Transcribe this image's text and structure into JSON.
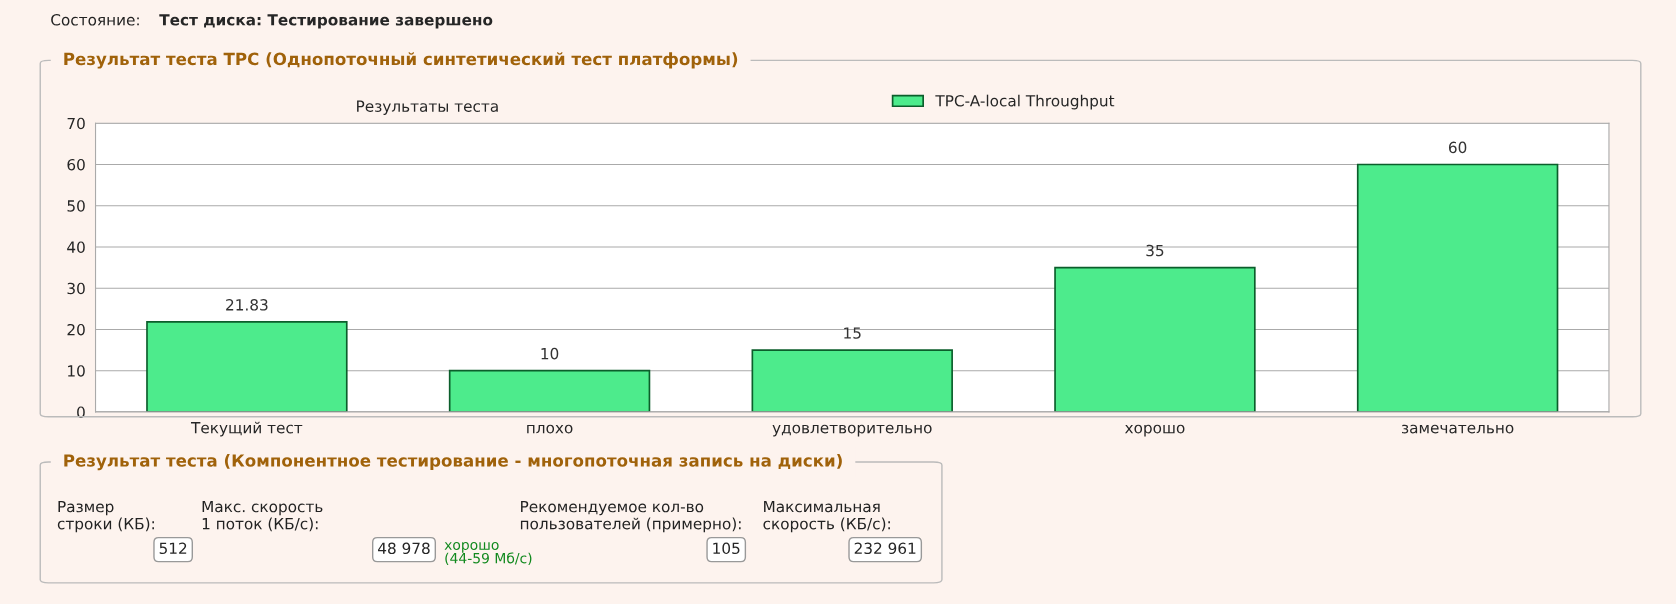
{
  "chart_data": {
    "type": "bar",
    "title": "Результат теста TPC (Однопоточный синтетический тест платформы)",
    "subtitle": "Результаты теста",
    "categories": [
      "Текущий тест",
      "плохо",
      "удовлетворительно",
      "хорошо",
      "замечательно"
    ],
    "series": [
      {
        "name": "TPC-A-local Throughput",
        "color": "#4deb8c",
        "values": [
          21.83,
          10,
          15,
          35,
          60
        ]
      }
    ],
    "ylim": [
      0,
      70
    ],
    "yticks": [
      0,
      10,
      20,
      30,
      40,
      50,
      60,
      70
    ],
    "grid": "y",
    "legend": "top",
    "data_labels": true,
    "annotations": [
      "Состояние:",
      "Тест диска: Тестирование завершено",
      "Результат теста (Компонентное тестирование - многопоточная запись на диски)",
      "Размер строки (КБ):",
      "512",
      "Макс. скорость 1 поток (КБ/с):",
      "48 978",
      "хорошо (44-59 Мб/с)",
      "Рекомендуемое кол-во пользователей (примерно):",
      "105",
      "Максимальная скорость (КБ/с):",
      "232 961"
    ]
  }
}
